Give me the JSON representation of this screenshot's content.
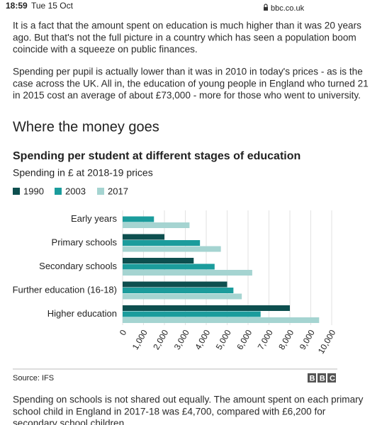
{
  "status_bar": {
    "time": "18:59",
    "date": "Tue 15 Oct",
    "url": "bbc.co.uk"
  },
  "article": {
    "paragraphs": [
      [
        "It is a fact that the amount spent on education is much higher than it was 20 years",
        "ago. But that's not the full picture in a country which has seen a population boom",
        "coincide with a squeeze on public finances."
      ],
      [
        "Spending per pupil is actually lower than it was in 2010 in today's prices - as is the",
        "case across the UK. All in, the education of young people in England who turned 21",
        "in 2015 cost an average of about £73,000 - more for those who went to university."
      ]
    ],
    "heading": "Where the money goes",
    "closing_paragraph": [
      "Spending on schools is not shared out equally. The amount spent on each primary",
      "school child in England in 2017-18 was £4,700, compared with £6,200 for",
      "secondary school children."
    ]
  },
  "chart_data": {
    "type": "bar",
    "orientation": "horizontal",
    "title": "Spending per student at different stages of education",
    "subtitle": "Spending in £ at 2018-19 prices",
    "categories": [
      "Early years",
      "Primary schools",
      "Secondary schools",
      "Further education (16-18)",
      "Higher education"
    ],
    "series": [
      {
        "name": "1990",
        "color": "#0d4f4f",
        "values": [
          null,
          2000,
          3400,
          5000,
          8000
        ]
      },
      {
        "name": "2003",
        "color": "#1b9c9c",
        "values": [
          1500,
          3700,
          4400,
          5300,
          6600
        ]
      },
      {
        "name": "2017",
        "color": "#a5d4d1",
        "values": [
          3200,
          4700,
          6200,
          5700,
          9400
        ]
      }
    ],
    "xlim": [
      0,
      10000
    ],
    "xticks": [
      0,
      {
        "value": 1000,
        "label": "1,000"
      },
      {
        "value": 2000,
        "label": "2,000"
      },
      {
        "value": 3000,
        "label": "3,000"
      },
      {
        "value": 4000,
        "label": "4,000"
      },
      {
        "value": 5000,
        "label": "5,000"
      },
      {
        "value": 6000,
        "label": "6,000"
      },
      {
        "value": 7000,
        "label": "7,000"
      },
      {
        "value": 8000,
        "label": "8,000"
      },
      {
        "value": 9000,
        "label": "9,000"
      },
      {
        "value": 10000,
        "label": "10,000"
      }
    ],
    "grid": true,
    "legend": "top-left",
    "source": "Source: IFS",
    "logo": "BBC"
  }
}
